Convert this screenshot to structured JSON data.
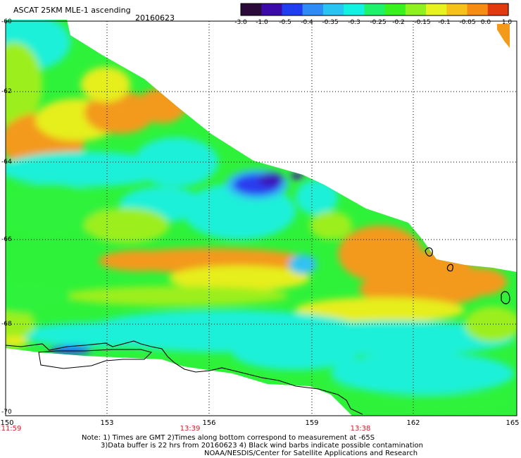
{
  "header": {
    "title": "ASCAT 25KM MLE-1 ascending",
    "date": "20160623"
  },
  "colorbar": {
    "labels": [
      "-3.0",
      "-1.0",
      "-0.5",
      "-0.4",
      "-0.35",
      "-0.3",
      "-0.25",
      "-0.2",
      "-0.15",
      "-0.1",
      "-0.05",
      "0.0",
      "1.0"
    ],
    "colors": [
      "#2b0a3a",
      "#3b0aa8",
      "#1f3ef2",
      "#2f8cf6",
      "#28c4f2",
      "#12f2e2",
      "#1ef26a",
      "#38f21e",
      "#8ef21e",
      "#e8f21e",
      "#f6c21a",
      "#f68c12",
      "#e23a0e"
    ]
  },
  "axes": {
    "lat_labels": [
      "-60",
      "-62",
      "-64",
      "-66",
      "-68",
      "-70"
    ],
    "lon_labels": [
      "150",
      "153",
      "156",
      "159",
      "162",
      "165"
    ],
    "time_labels": [
      "11:59",
      "13:39",
      "13:38"
    ]
  },
  "notes": {
    "line1": "Note: 1) Times are GMT 2)Times along bottom correspond to measurement at -65S",
    "line2": "3)Data buffer is 22 hrs from 20160623 4) Black wind barbs indicate possible contamination",
    "line3": "NOAA/NESDIS/Center for Satellite Applications and Research"
  },
  "field": {
    "orange": "#f39a1a",
    "yellow": "#e6ee1c",
    "yellowgreen": "#9cef1e",
    "green": "#2ef23a",
    "cyan": "#1cf0d8",
    "lightblue": "#30c2f2",
    "blue": "#2a3cf0",
    "darkblue": "#3a14b8",
    "purple": "#4a0ea0"
  }
}
